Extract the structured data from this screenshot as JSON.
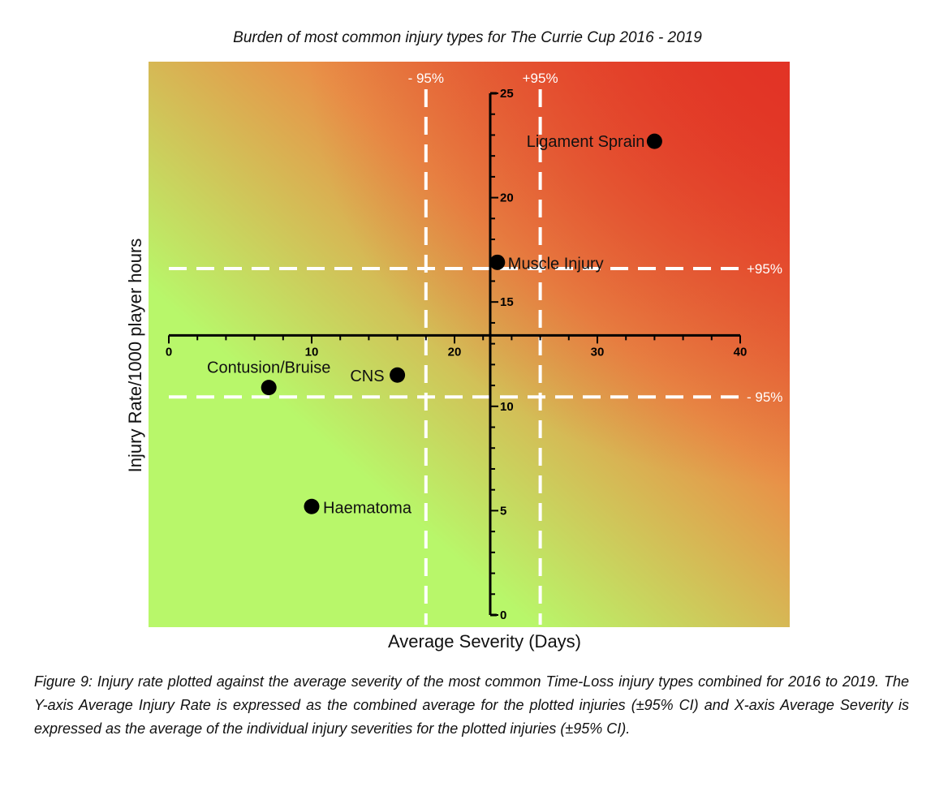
{
  "chart_data": {
    "type": "scatter",
    "title": "Burden of most common injury types for The Currie Cup 2016 - 2019",
    "xlabel": "Average Severity (Days)",
    "ylabel": "Injury Rate/1000 player hours",
    "xlim": [
      0,
      40
    ],
    "ylim": [
      0,
      25
    ],
    "x_ticks": [
      0,
      10,
      20,
      30,
      40
    ],
    "y_ticks": [
      0,
      5,
      10,
      15,
      20,
      25
    ],
    "y_axis_at_x": 22.5,
    "x_axis_at_y": 13.4,
    "points": [
      {
        "label": "Ligament Sprain",
        "x": 34,
        "y": 22.7
      },
      {
        "label": "Muscle Injury",
        "x": 23,
        "y": 16.9
      },
      {
        "label": "CNS",
        "x": 16,
        "y": 11.5
      },
      {
        "label": "Contusion/Bruise",
        "x": 7,
        "y": 10.9
      },
      {
        "label": "Haematoma",
        "x": 10,
        "y": 5.2
      }
    ],
    "ci_lines": {
      "x_lower": 18,
      "x_upper": 26,
      "y_upper": 16.6,
      "y_lower": 10.45,
      "x_lower_label": "- 95%",
      "x_upper_label": "+95%",
      "y_upper_label": "+95%",
      "y_lower_label": "- 95%"
    },
    "colors": {
      "low": "#b8f76a",
      "mid": "#e89248",
      "high": "#e23325",
      "points": "#000000",
      "ci": "#ffffff"
    }
  },
  "caption": "Figure 9: Injury rate plotted against the average severity of the most common Time-Loss injury types combined for 2016 to 2019. The Y-axis Average Injury Rate is expressed as the combined average for the plotted injuries (±95% CI) and X-axis Average Severity is expressed as the average of the individual injury severities for the plotted injuries (±95% CI)."
}
